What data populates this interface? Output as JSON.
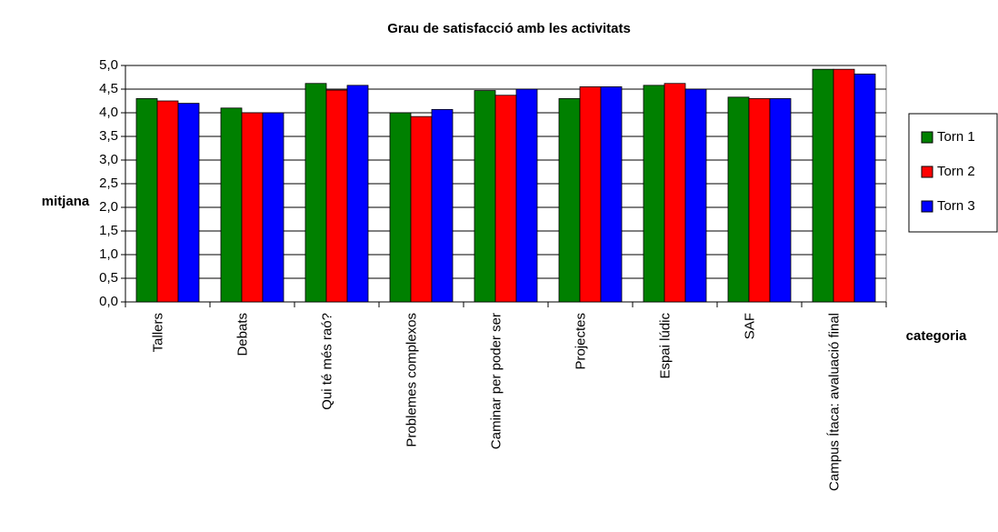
{
  "chart_data": {
    "type": "bar",
    "title": "Grau de satisfacció amb les activitats",
    "y_label": "mitjana",
    "x_label": "categoria",
    "categories": [
      "Tallers",
      "Debats",
      "Qui té més raó?",
      "Problemes complexos",
      "Caminar per poder ser",
      "Projectes",
      "Espai lúdic",
      "SAF",
      "Campus Ítaca: avaluació final"
    ],
    "series": [
      {
        "name": "Torn 1",
        "color": "#008000",
        "values": [
          4.3,
          4.1,
          4.62,
          4.0,
          4.47,
          4.3,
          4.58,
          4.33,
          4.92
        ]
      },
      {
        "name": "Torn 2",
        "color": "#ff0000",
        "values": [
          4.25,
          4.0,
          4.48,
          3.92,
          4.37,
          4.55,
          4.62,
          4.3,
          4.92
        ]
      },
      {
        "name": "Torn 3",
        "color": "#0000ff",
        "values": [
          4.2,
          4.0,
          4.58,
          4.07,
          4.5,
          4.55,
          4.5,
          4.3,
          4.82
        ]
      }
    ],
    "ylim": [
      0,
      5
    ],
    "yticks": [
      {
        "value": 0,
        "label": "0,0"
      },
      {
        "value": 0.5,
        "label": "0,5"
      },
      {
        "value": 1,
        "label": "1,0"
      },
      {
        "value": 1.5,
        "label": "1,5"
      },
      {
        "value": 2,
        "label": "2,0"
      },
      {
        "value": 2.5,
        "label": "2,5"
      },
      {
        "value": 3,
        "label": "3,0"
      },
      {
        "value": 3.5,
        "label": "3,5"
      },
      {
        "value": 4,
        "label": "4,0"
      },
      {
        "value": 4.5,
        "label": "4,5"
      },
      {
        "value": 5,
        "label": "5,0"
      }
    ],
    "grid": true,
    "legend": "right"
  }
}
